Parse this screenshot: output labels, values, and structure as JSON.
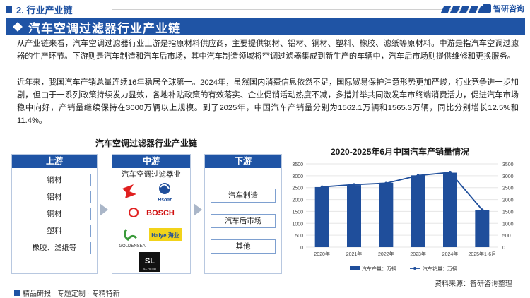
{
  "header": {
    "section_title": "2. 行业产业链",
    "logo_text": "智研咨询"
  },
  "banner": {
    "title": "汽车空调过滤器行业产业链"
  },
  "paragraphs": [
    "从产业链来看，汽车空调过滤器行业上游是指原材料供应商，主要提供钢材、铝材、铜材、塑料、橡胶、滤纸等原材料。中游是指汽车空调过滤器的生产环节。下游则是汽车制造和汽车后市场，其中汽车制造领域将空调过滤器集成到新生产的车辆中，汽车后市场则提供维修和更换服务。",
    "近年来，我国汽车产销总量连续16年稳居全球第一。2024年，虽然国内消费信息依然不足，国际贸易保护注意形势更加严峻，行业竞争进一步加剧，但由于一系列政策持续发力显效，各地补贴政策的有效落实、企业促销活动热度不减，多措并举共同激发车市终端消费活力，促进汽车市场稳中向好，产销量继续保持在3000万辆以上规模。到了2025年，中国汽车产销量分别为1562.1万辆和1565.3万辆，同比分别增长12.5%和11.4%。"
  ],
  "diagram": {
    "title": "汽车空调过滤器行业产业链",
    "upstream": {
      "label": "上游",
      "items": [
        "钢材",
        "铝材",
        "铜材",
        "塑料",
        "橡胶、滤纸等"
      ]
    },
    "midstream": {
      "label": "中游",
      "subtitle": "汽车空调过滤器业",
      "brands": [
        "Hsoar",
        "BOSCH",
        "GOLDENSEA",
        "Haiye 海业",
        "S.L FILTER"
      ]
    },
    "downstream": {
      "label": "下游",
      "items": [
        "汽车制造",
        "汽车后市场",
        "其他"
      ]
    }
  },
  "chart_data": {
    "type": "bar",
    "title": "2020-2025年6月中国汽车产销量情况",
    "categories": [
      "2020年",
      "2021年",
      "2022年",
      "2023年",
      "2024年",
      "2025年1-6月"
    ],
    "series": [
      {
        "name": "汽车产量：万辆",
        "type": "bar",
        "values": [
          2523,
          2608,
          2702,
          3016,
          3128,
          1562
        ]
      },
      {
        "name": "汽车销量：万辆",
        "type": "line",
        "values": [
          2531,
          2628,
          2686,
          3009,
          3143,
          1565
        ]
      }
    ],
    "ylim": [
      0,
      3500
    ],
    "yticks": [
      0,
      500,
      1000,
      1500,
      2000,
      2500,
      3000,
      3500
    ],
    "colors": {
      "bar": "#1f4e9b",
      "line": "#1f4e9b"
    },
    "legend_position": "bottom"
  },
  "source": "资料来源：智研咨询整理",
  "footer": {
    "text": "精品研报 · 专题定制 · 专精特新"
  }
}
